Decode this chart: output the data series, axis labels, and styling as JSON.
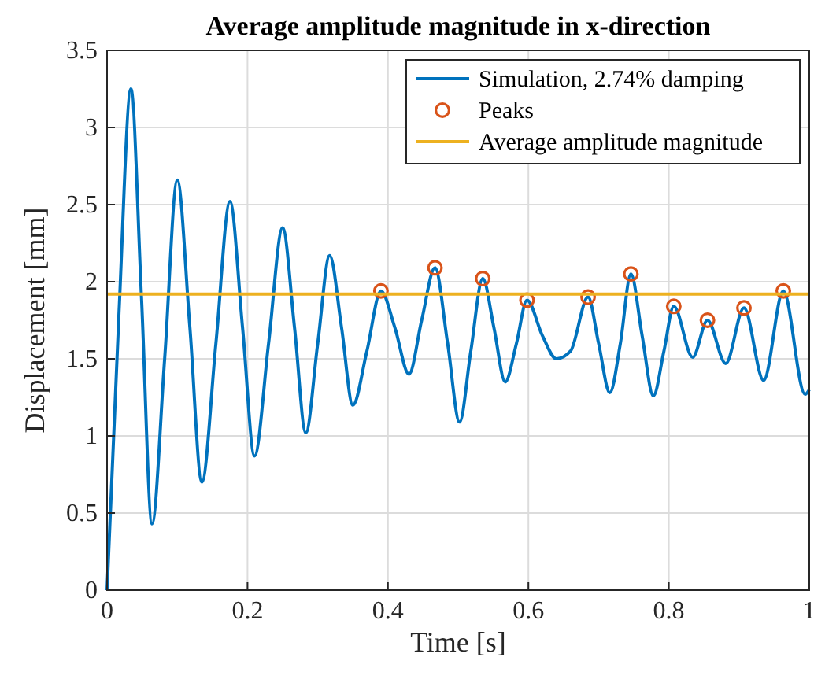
{
  "chart_data": {
    "type": "line",
    "title": "Average amplitude magnitude in x-direction",
    "xlabel": "Time [s]",
    "ylabel": "Displacement [mm]",
    "xlim": [
      0,
      1
    ],
    "ylim": [
      0,
      3.5
    ],
    "xticks": [
      0,
      0.2,
      0.4,
      0.6,
      0.8,
      1
    ],
    "yticks": [
      0,
      0.5,
      1,
      1.5,
      2,
      2.5,
      3,
      3.5
    ],
    "grid": true,
    "legend": "top right",
    "series": [
      {
        "name": "Simulation, 2.74% damping",
        "color": "#0072bd",
        "x": [
          0,
          0.017,
          0.034,
          0.049,
          0.064,
          0.082,
          0.1,
          0.118,
          0.135,
          0.155,
          0.175,
          0.193,
          0.21,
          0.23,
          0.25,
          0.267,
          0.283,
          0.3,
          0.317,
          0.334,
          0.35,
          0.37,
          0.39,
          0.41,
          0.43,
          0.448,
          0.467,
          0.485,
          0.502,
          0.518,
          0.535,
          0.551,
          0.567,
          0.583,
          0.598,
          0.62,
          0.64,
          0.66,
          0.685,
          0.7,
          0.716,
          0.731,
          0.746,
          0.762,
          0.778,
          0.793,
          0.807,
          0.834,
          0.855,
          0.881,
          0.907,
          0.935,
          0.963,
          0.994,
          1
        ],
        "values": [
          0,
          1.8,
          3.25,
          1.9,
          0.43,
          1.5,
          2.66,
          1.7,
          0.7,
          1.6,
          2.52,
          1.7,
          0.87,
          1.6,
          2.35,
          1.7,
          1.02,
          1.6,
          2.17,
          1.7,
          1.2,
          1.55,
          1.94,
          1.7,
          1.4,
          1.75,
          2.09,
          1.6,
          1.09,
          1.55,
          2.02,
          1.7,
          1.35,
          1.6,
          1.88,
          1.65,
          1.5,
          1.55,
          1.9,
          1.6,
          1.28,
          1.6,
          2.05,
          1.65,
          1.26,
          1.55,
          1.84,
          1.51,
          1.75,
          1.47,
          1.83,
          1.36,
          1.94,
          1.27,
          1.3
        ]
      },
      {
        "name": "Peaks",
        "type": "scatter",
        "marker": "circle",
        "color": "#d95319",
        "x": [
          0.39,
          0.467,
          0.535,
          0.598,
          0.685,
          0.746,
          0.807,
          0.855,
          0.907,
          0.963
        ],
        "values": [
          1.94,
          2.09,
          2.02,
          1.88,
          1.9,
          2.05,
          1.84,
          1.75,
          1.83,
          1.94
        ]
      },
      {
        "name": "Average amplitude magnitude",
        "type": "line",
        "color": "#edb120",
        "x": [
          0,
          1
        ],
        "values": [
          1.92,
          1.92
        ]
      }
    ]
  }
}
